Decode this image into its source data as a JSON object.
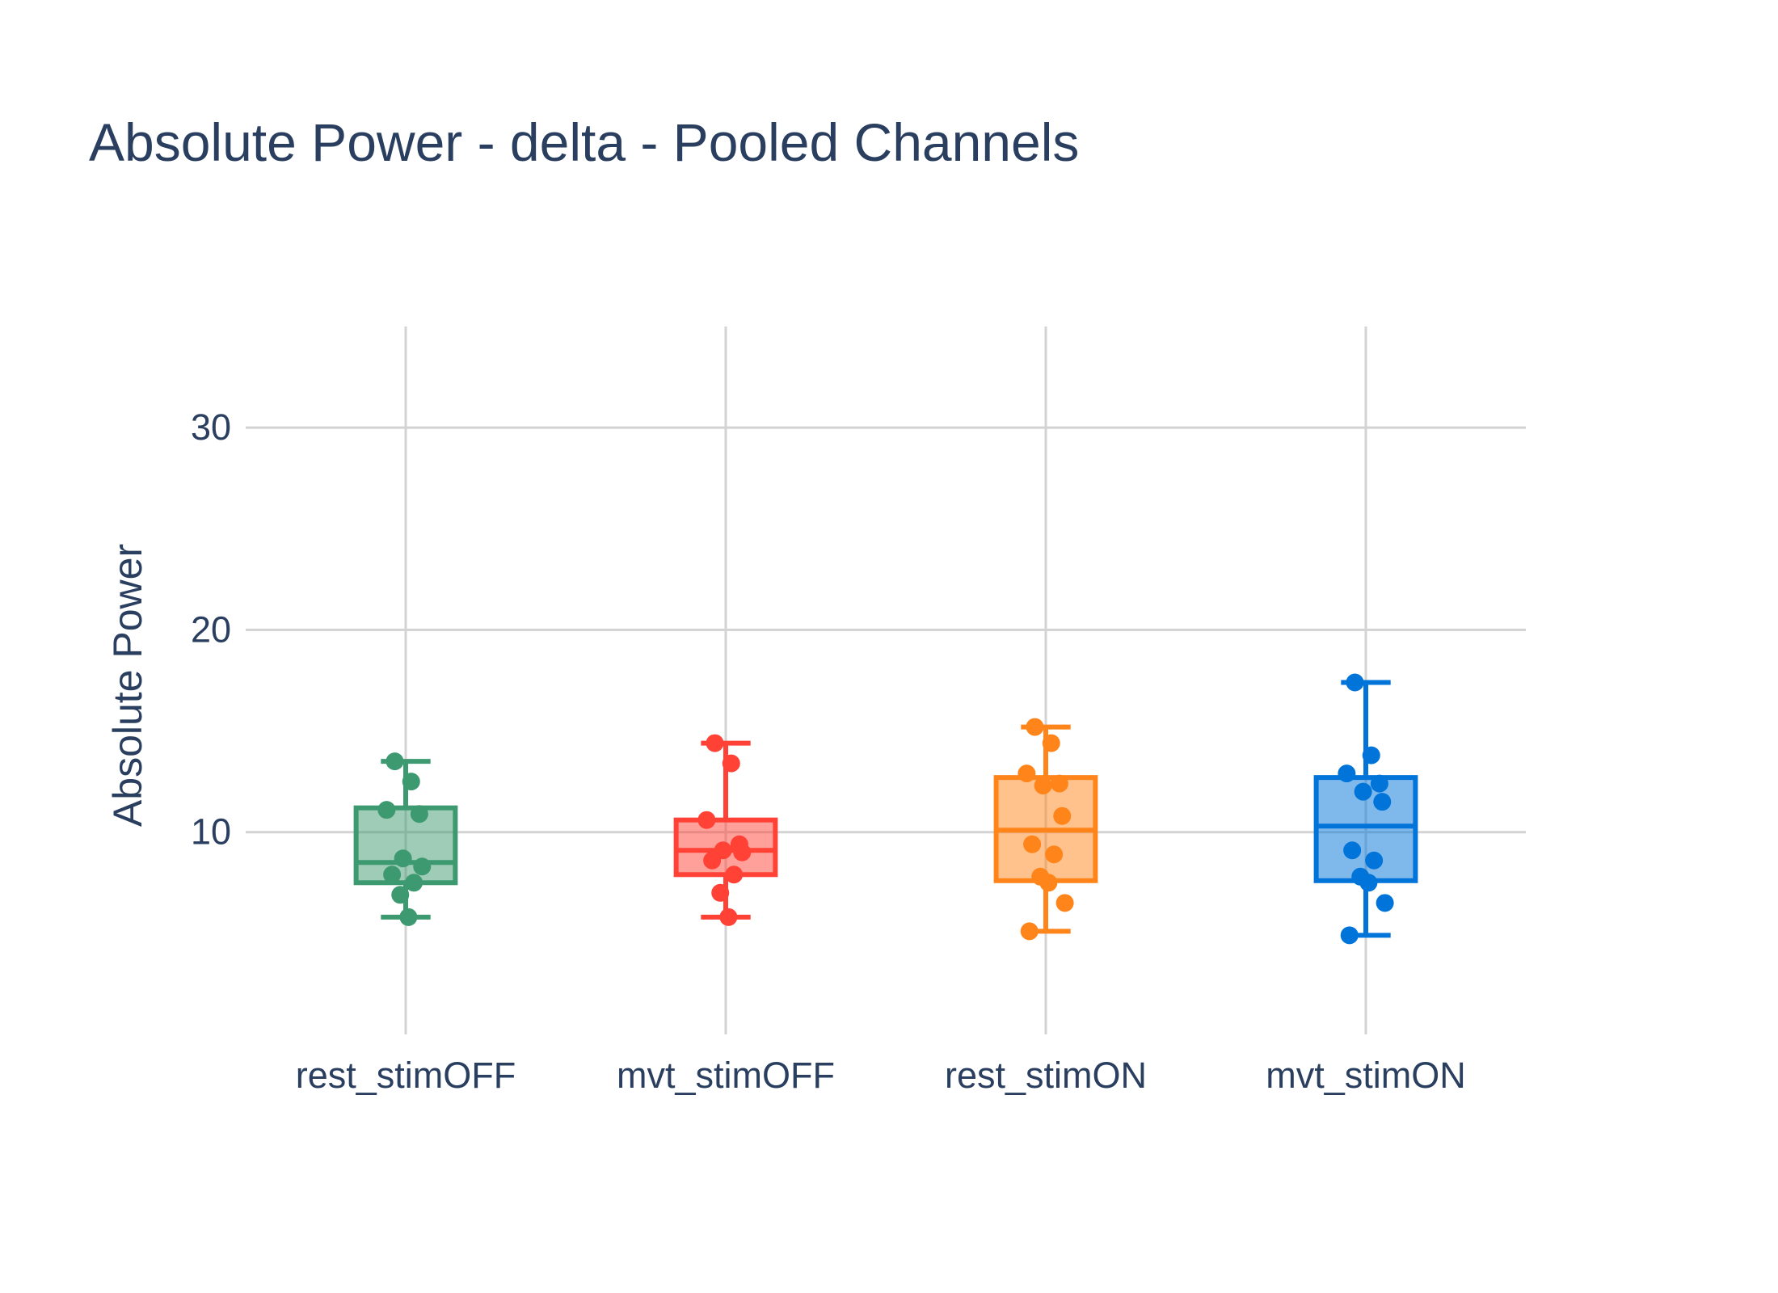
{
  "chart_data": {
    "type": "box",
    "title": "Absolute Power - delta - Pooled Channels",
    "xlabel": "",
    "ylabel": "Absolute Power",
    "ylim": [
      0,
      35
    ],
    "yticks": [
      10,
      20,
      30
    ],
    "grid": true,
    "categories": [
      "rest_stimOFF",
      "mvt_stimOFF",
      "rest_stimON",
      "mvt_stimON"
    ],
    "series": [
      {
        "category": "rest_stimOFF",
        "color": "#3d9970",
        "fill": "rgba(61,153,112,0.5)",
        "min": 5.8,
        "q1": 7.5,
        "median": 8.5,
        "q3": 11.2,
        "max": 13.5,
        "points": [
          13.5,
          12.5,
          11.1,
          10.9,
          8.7,
          8.3,
          7.9,
          7.5,
          6.9,
          5.8
        ]
      },
      {
        "category": "mvt_stimOFF",
        "color": "#ff4136",
        "fill": "rgba(255,65,54,0.5)",
        "min": 5.8,
        "q1": 7.9,
        "median": 9.1,
        "q3": 10.6,
        "max": 14.4,
        "points": [
          14.4,
          13.4,
          10.6,
          9.4,
          9.1,
          9.0,
          8.6,
          7.9,
          7.0,
          5.8
        ]
      },
      {
        "category": "rest_stimON",
        "color": "#ff851b",
        "fill": "rgba(255,133,27,0.5)",
        "min": 5.1,
        "q1": 7.6,
        "median": 10.1,
        "q3": 12.7,
        "max": 15.2,
        "points": [
          15.2,
          14.4,
          12.9,
          12.4,
          12.3,
          10.8,
          9.4,
          8.9,
          7.8,
          7.5,
          6.5,
          5.1
        ]
      },
      {
        "category": "mvt_stimON",
        "color": "#0074d9",
        "fill": "rgba(0,116,217,0.5)",
        "min": 4.9,
        "q1": 7.6,
        "median": 10.3,
        "q3": 12.7,
        "max": 17.4,
        "points": [
          17.4,
          13.8,
          12.9,
          12.4,
          12.0,
          11.5,
          9.1,
          8.6,
          7.8,
          7.5,
          6.5,
          4.9
        ]
      }
    ]
  }
}
